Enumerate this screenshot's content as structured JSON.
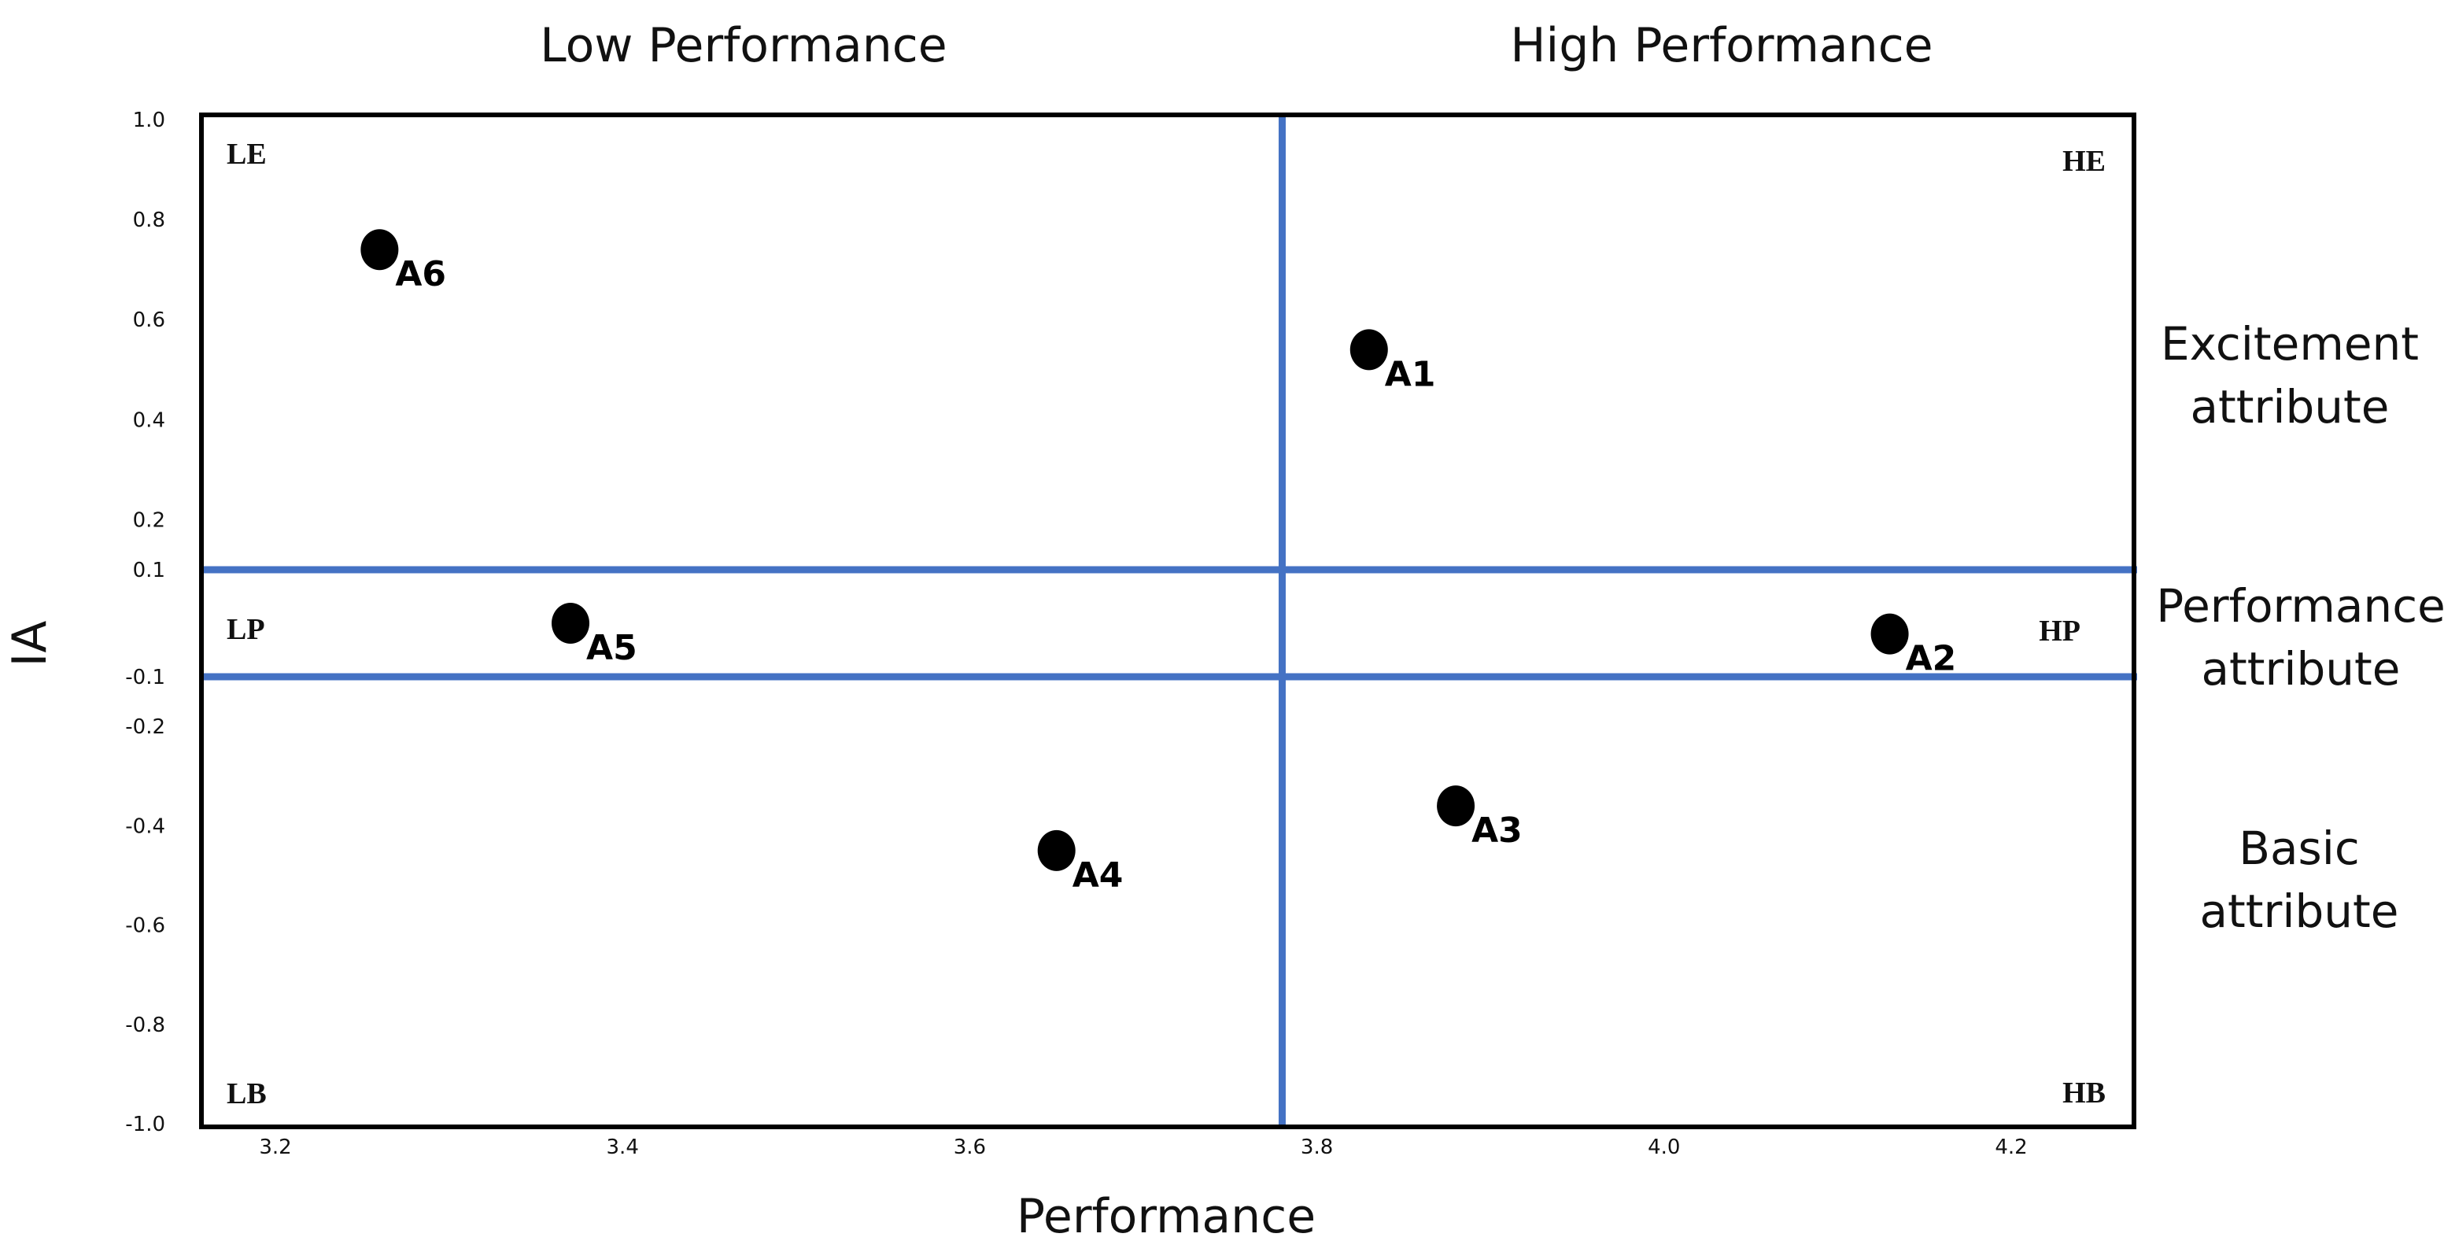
{
  "chart_data": {
    "type": "scatter",
    "title": "",
    "xlabel": "Performance",
    "ylabel": "IA",
    "xlim": [
      3.15,
      4.27
    ],
    "x_ticks": [
      {
        "value": 3.2,
        "label": "3.2"
      },
      {
        "value": 3.4,
        "label": "3.4"
      },
      {
        "value": 3.6,
        "label": "3.6"
      },
      {
        "value": 3.8,
        "label": "3.8"
      },
      {
        "value": 4.0,
        "label": "4.0"
      },
      {
        "value": 4.2,
        "label": "4.2"
      }
    ],
    "y_ticks": [
      {
        "value": 1.0,
        "label": "1.0"
      },
      {
        "value": 0.8,
        "label": "0.8"
      },
      {
        "value": 0.6,
        "label": "0.6"
      },
      {
        "value": 0.4,
        "label": "0.4"
      },
      {
        "value": 0.2,
        "label": "0.2"
      },
      {
        "value": 0.1,
        "label": "0.1"
      },
      {
        "value": -0.1,
        "label": "-0.1"
      },
      {
        "value": -0.2,
        "label": "-0.2"
      },
      {
        "value": -0.4,
        "label": "-0.4"
      },
      {
        "value": -0.6,
        "label": "-0.6"
      },
      {
        "value": -0.8,
        "label": "-0.8"
      },
      {
        "value": -1.0,
        "label": "-1.0"
      }
    ],
    "divider_x": 3.78,
    "divider_y": [
      0.1,
      -0.1
    ],
    "points": [
      {
        "label": "A1",
        "x": 3.83,
        "y": 0.54
      },
      {
        "label": "A2",
        "x": 4.13,
        "y": -0.02
      },
      {
        "label": "A3",
        "x": 3.88,
        "y": -0.36
      },
      {
        "label": "A4",
        "x": 3.65,
        "y": -0.45
      },
      {
        "label": "A5",
        "x": 3.37,
        "y": 0.0
      },
      {
        "label": "A6",
        "x": 3.26,
        "y": 0.74
      }
    ],
    "quadrant_labels": {
      "LE": "LE",
      "HE": "HE",
      "LP": "LP",
      "HP": "HP",
      "LB": "LB",
      "HB": "HB"
    },
    "column_headers": {
      "low": "Low Performance",
      "high": "High Performance"
    },
    "row_labels": {
      "excitement": [
        "Excitement",
        "attribute"
      ],
      "performance": [
        "Performance",
        "attribute"
      ],
      "basic": [
        "Basic",
        "attribute"
      ]
    },
    "grid": false,
    "legend": "none",
    "colors": {
      "divider": "#4472c4",
      "point": "#000000",
      "frame": "#000000"
    }
  }
}
